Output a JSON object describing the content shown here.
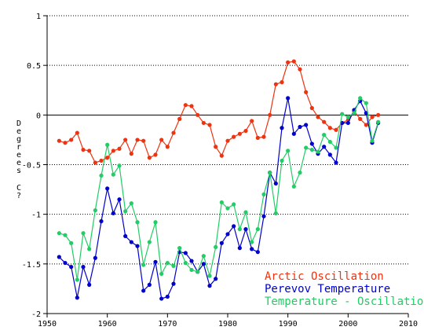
{
  "chart_data": {
    "type": "line",
    "title": "",
    "xlabel": "",
    "ylabel": "Degrees C?",
    "xlim": [
      1950,
      2010
    ],
    "ylim": [
      -2,
      1
    ],
    "x_ticks": [
      1950,
      1960,
      1970,
      1980,
      1990,
      2000,
      2010
    ],
    "y_ticks": [
      -2,
      -1.5,
      -1,
      -0.5,
      0,
      0.5,
      1
    ],
    "y_tick_labels": [
      "-2",
      "-1.5",
      "-1",
      "-0.5",
      "0",
      "0.5",
      "1"
    ],
    "grid": "dotted horizontal at y ticks",
    "zero_line": true,
    "legend_position": "bottom-right",
    "x": [
      1952,
      1953,
      1954,
      1955,
      1956,
      1957,
      1958,
      1959,
      1960,
      1961,
      1962,
      1963,
      1964,
      1965,
      1966,
      1967,
      1968,
      1969,
      1970,
      1971,
      1972,
      1973,
      1974,
      1975,
      1976,
      1977,
      1978,
      1979,
      1980,
      1981,
      1982,
      1983,
      1984,
      1985,
      1986,
      1987,
      1988,
      1989,
      1990,
      1991,
      1992,
      1993,
      1994,
      1995,
      1996,
      1997,
      1998,
      1999,
      2000,
      2001,
      2002,
      2003,
      2004,
      2005
    ],
    "series": [
      {
        "name": "Arctic Oscillation",
        "color": "#ee3311",
        "values": [
          -0.26,
          -0.28,
          -0.25,
          -0.18,
          -0.35,
          -0.36,
          -0.48,
          -0.46,
          -0.43,
          -0.36,
          -0.34,
          -0.25,
          -0.39,
          -0.25,
          -0.26,
          -0.43,
          -0.4,
          -0.25,
          -0.32,
          -0.18,
          -0.04,
          0.1,
          0.09,
          0.0,
          -0.08,
          -0.1,
          -0.32,
          -0.41,
          -0.26,
          -0.22,
          -0.19,
          -0.16,
          -0.06,
          -0.23,
          -0.22,
          0.0,
          0.31,
          0.33,
          0.53,
          0.54,
          0.46,
          0.23,
          0.07,
          -0.02,
          -0.07,
          -0.13,
          -0.15,
          -0.08,
          -0.05,
          0.04,
          -0.04,
          -0.1,
          -0.02,
          0.0
        ]
      },
      {
        "name": "Perevov Temperature",
        "color": "#0000cc",
        "values": [
          -1.43,
          -1.49,
          -1.53,
          -1.84,
          -1.53,
          -1.71,
          -1.44,
          -1.07,
          -0.74,
          -0.99,
          -0.85,
          -1.22,
          -1.28,
          -1.32,
          -1.77,
          -1.71,
          -1.48,
          -1.85,
          -1.83,
          -1.7,
          -1.38,
          -1.39,
          -1.47,
          -1.58,
          -1.5,
          -1.72,
          -1.65,
          -1.29,
          -1.2,
          -1.12,
          -1.34,
          -1.15,
          -1.35,
          -1.38,
          -1.02,
          -0.58,
          -0.69,
          -0.13,
          0.17,
          -0.19,
          -0.12,
          -0.1,
          -0.29,
          -0.39,
          -0.32,
          -0.4,
          -0.48,
          -0.08,
          -0.08,
          0.05,
          0.14,
          0.02,
          -0.28,
          -0.08
        ]
      },
      {
        "name": "Temperature - Oscillation",
        "color": "#22cc66",
        "values": [
          -1.19,
          -1.21,
          -1.29,
          -1.66,
          -1.19,
          -1.35,
          -0.96,
          -0.61,
          -0.3,
          -0.6,
          -0.51,
          -0.97,
          -0.89,
          -1.08,
          -1.51,
          -1.28,
          -1.08,
          -1.6,
          -1.49,
          -1.52,
          -1.34,
          -1.49,
          -1.56,
          -1.58,
          -1.42,
          -1.62,
          -1.33,
          -0.88,
          -0.94,
          -0.9,
          -1.15,
          -0.98,
          -1.28,
          -1.15,
          -0.8,
          -0.58,
          -0.99,
          -0.46,
          -0.36,
          -0.72,
          -0.58,
          -0.33,
          -0.35,
          -0.37,
          -0.2,
          -0.27,
          -0.33,
          0.01,
          -0.02,
          0.02,
          0.17,
          0.12,
          -0.26,
          -0.07
        ]
      }
    ]
  }
}
